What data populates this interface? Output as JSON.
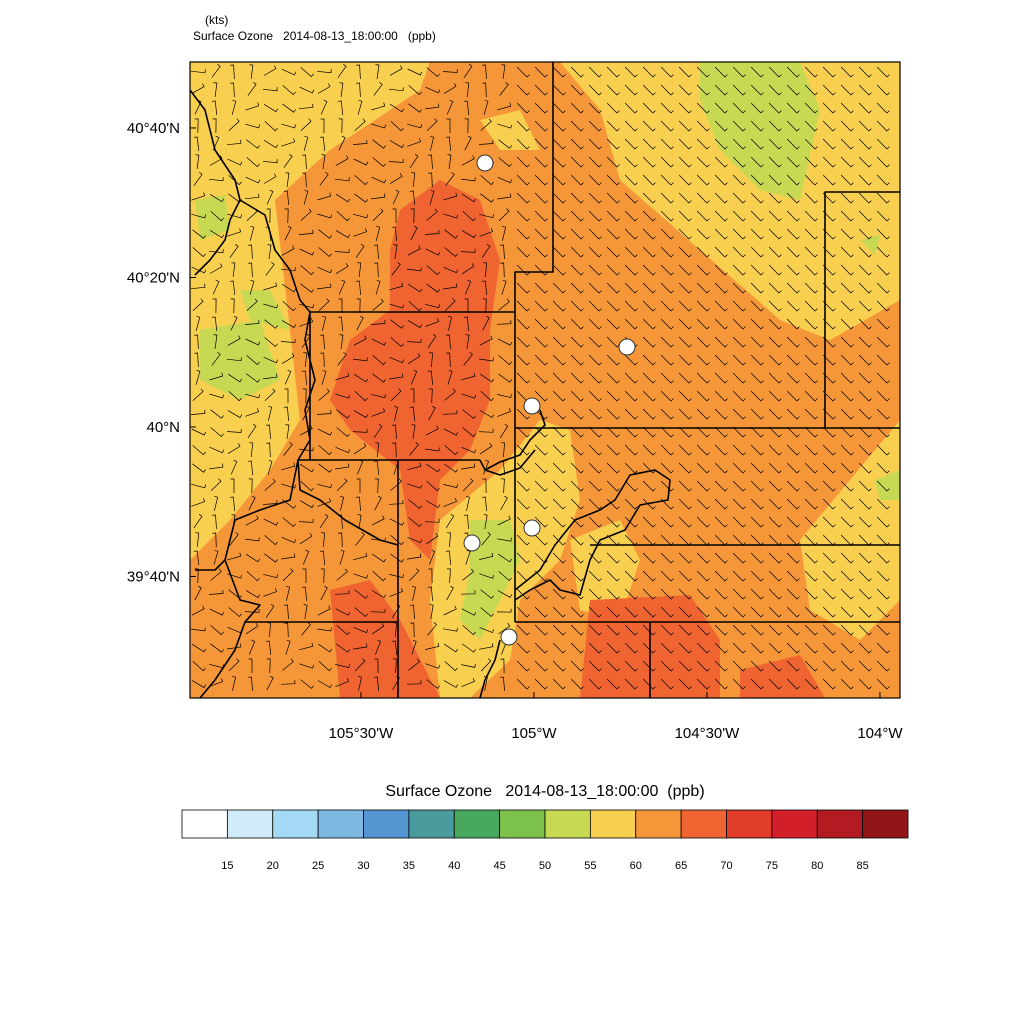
{
  "header": {
    "units": "(kts)",
    "title": "Surface Ozone   2014-08-13_18:00:00   (ppb)"
  },
  "map": {
    "lat_range": [
      39.3958,
      40.8138
    ],
    "lon_range": [
      -105.994,
      -103.942
    ],
    "lat_ticks": [
      {
        "value": 40.6667,
        "label": "40°40'N"
      },
      {
        "value": 40.3333,
        "label": "40°20'N"
      },
      {
        "value": 40,
        "label": "40°N"
      },
      {
        "value": 39.6667,
        "label": "39°40'N"
      }
    ],
    "lon_ticks": [
      {
        "value": -105.5,
        "label": "105°30'W"
      },
      {
        "value": -105,
        "label": "105°W"
      },
      {
        "value": -104.5,
        "label": "104°30'W"
      },
      {
        "value": -104,
        "label": "104°W"
      }
    ]
  },
  "colorbar": {
    "title": "Surface Ozone   2014-08-13_18:00:00  (ppb)",
    "levels": [
      15,
      20,
      25,
      30,
      35,
      40,
      45,
      50,
      55,
      60,
      65,
      70,
      75,
      80,
      85
    ],
    "colors": [
      "#ffffff",
      "#d0ecf8",
      "#a4daf5",
      "#7db8e3",
      "#5596d0",
      "#4a9b9e",
      "#48a85e",
      "#7cc24a",
      "#c7d952",
      "#f8cf4f",
      "#f59738",
      "#ef6430",
      "#e23d2a",
      "#d31f2a",
      "#b31b22",
      "#921617"
    ]
  }
}
